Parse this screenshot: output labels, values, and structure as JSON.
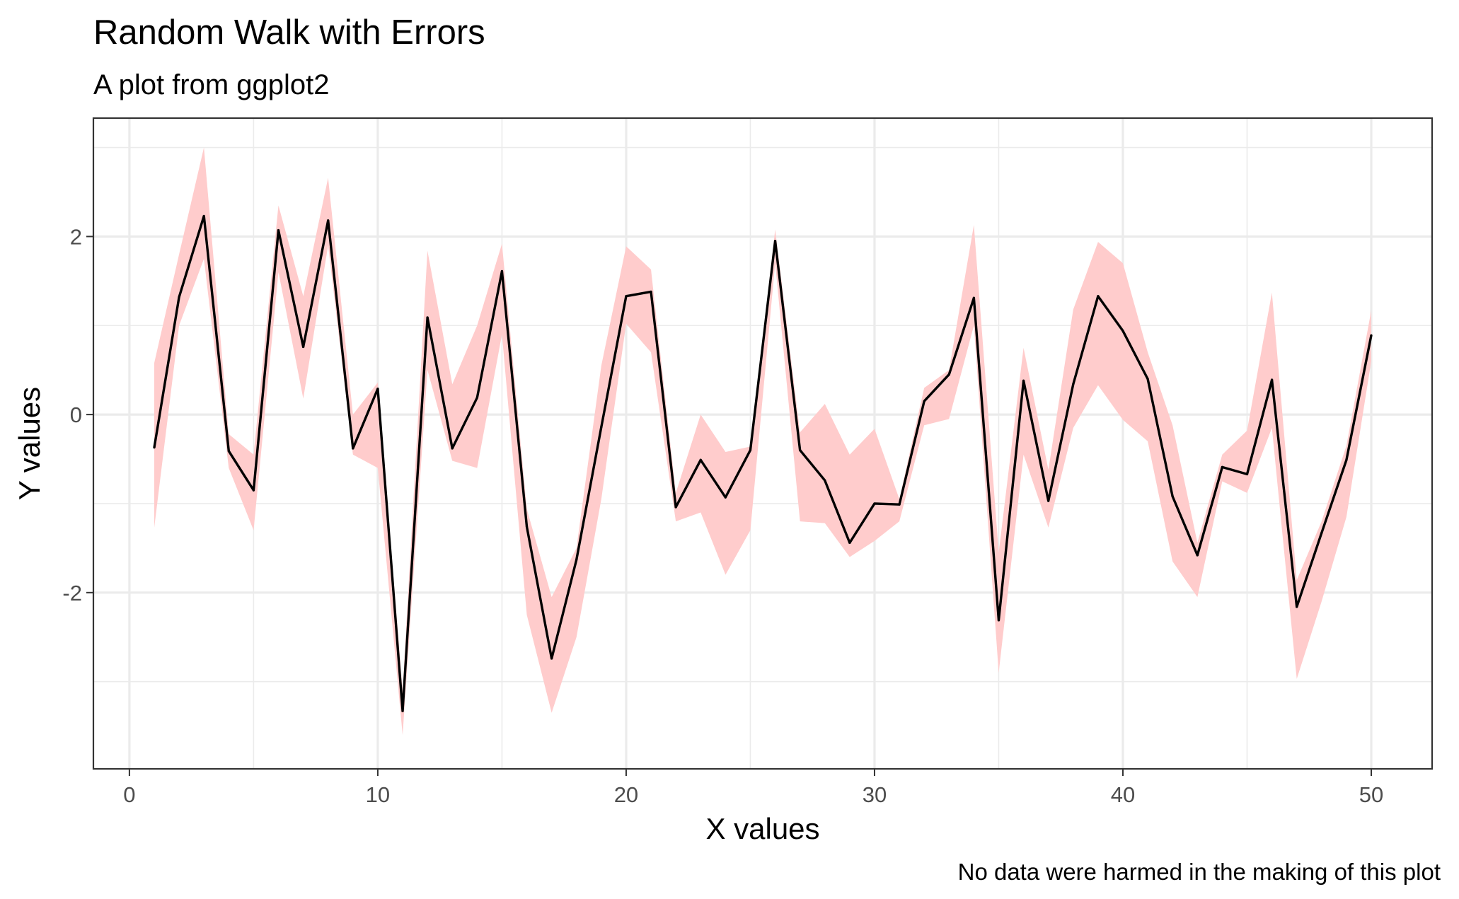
{
  "chart_data": {
    "type": "line",
    "title": "Random Walk with Errors",
    "subtitle": "A plot from ggplot2",
    "caption": "No data were harmed in the making of this plot",
    "xlabel": "X values",
    "ylabel": "Y values",
    "xlim": [
      -1.45,
      52.45
    ],
    "ylim": [
      -3.98,
      3.33
    ],
    "x_ticks": [
      0,
      10,
      20,
      30,
      40,
      50
    ],
    "x_tick_labels": [
      "0",
      "10",
      "20",
      "30",
      "40",
      "50"
    ],
    "y_ticks": [
      -2,
      0,
      2
    ],
    "y_tick_labels": [
      "-2",
      "0",
      "2"
    ],
    "grid": true,
    "legend": "none",
    "colors": {
      "line": "#000000",
      "ribbon": "#ffcccc",
      "panel_border": "#333333",
      "grid": "#ebebeb"
    },
    "series": [
      {
        "x": [
          1,
          2,
          3,
          4,
          5,
          6,
          7,
          8,
          9,
          10,
          11,
          12,
          13,
          14,
          15,
          16,
          17,
          18,
          19,
          20,
          21,
          22,
          23,
          24,
          25,
          26,
          27,
          28,
          29,
          30,
          31,
          32,
          33,
          34,
          35,
          36,
          37,
          38,
          39,
          40,
          41,
          42,
          43,
          44,
          45,
          46,
          47,
          48,
          49,
          50
        ],
        "y": [
          -0.37,
          1.32,
          2.23,
          -0.41,
          -0.85,
          2.07,
          0.76,
          2.18,
          -0.38,
          0.29,
          -3.33,
          1.09,
          -0.38,
          0.19,
          1.61,
          -1.26,
          -2.74,
          -1.63,
          -0.14,
          1.33,
          1.38,
          -1.04,
          -0.51,
          -0.93,
          -0.4,
          1.95,
          -0.4,
          -0.74,
          -1.44,
          -1.0,
          -1.01,
          0.15,
          0.45,
          1.31,
          -2.31,
          0.38,
          -0.97,
          0.34,
          1.33,
          0.94,
          0.4,
          -0.92,
          -1.58,
          -0.59,
          -0.67,
          0.39,
          -2.16,
          -1.33,
          -0.51,
          0.89
        ],
        "lower": [
          -1.27,
          1.0,
          1.75,
          -0.6,
          -1.3,
          1.6,
          0.18,
          1.9,
          -0.45,
          -0.6,
          -3.6,
          0.5,
          -0.52,
          -0.6,
          0.9,
          -2.25,
          -3.35,
          -2.5,
          -0.95,
          1.02,
          0.7,
          -1.2,
          -1.1,
          -1.8,
          -1.3,
          1.7,
          -1.2,
          -1.22,
          -1.6,
          -1.42,
          -1.2,
          -0.12,
          -0.05,
          1.0,
          -2.9,
          -0.45,
          -1.27,
          -0.15,
          0.33,
          -0.06,
          -0.3,
          -1.65,
          -2.05,
          -0.75,
          -0.88,
          -0.15,
          -2.97,
          -2.1,
          -1.15,
          0.6
        ],
        "upper": [
          0.58,
          1.8,
          3.0,
          -0.22,
          -0.45,
          2.35,
          1.33,
          2.66,
          0.0,
          0.36,
          -3.1,
          1.84,
          0.34,
          1.0,
          1.92,
          -1.06,
          -2.05,
          -1.5,
          0.55,
          1.89,
          1.63,
          -0.88,
          0.0,
          -0.42,
          -0.36,
          2.08,
          -0.2,
          0.12,
          -0.45,
          -0.16,
          -0.95,
          0.3,
          0.5,
          2.13,
          -1.55,
          0.75,
          -0.62,
          1.18,
          1.94,
          1.7,
          0.7,
          -0.12,
          -1.44,
          -0.45,
          -0.18,
          1.37,
          -1.86,
          -1.2,
          -0.35,
          1.17
        ]
      }
    ]
  }
}
